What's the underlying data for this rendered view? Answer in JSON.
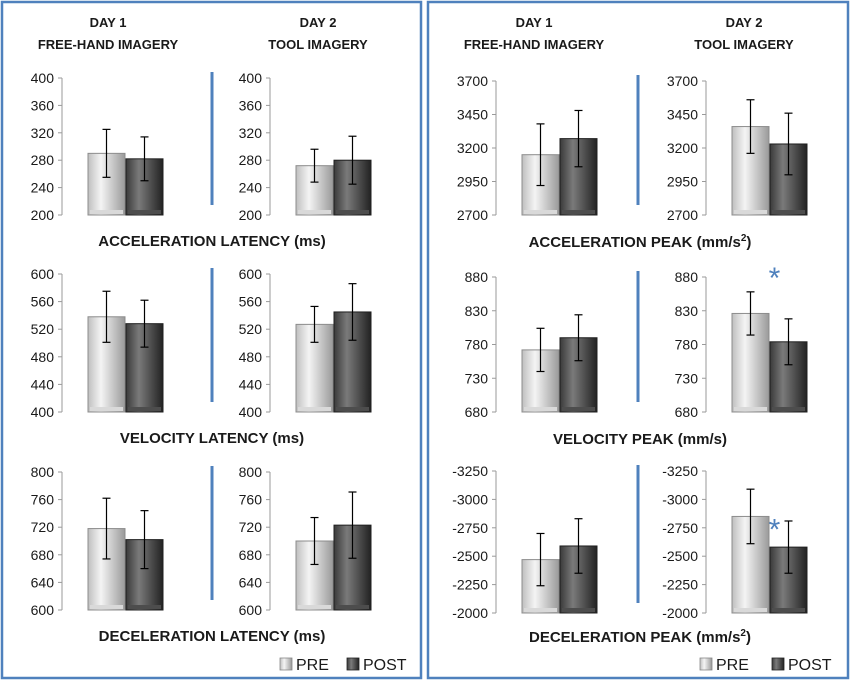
{
  "header": {
    "left": [
      {
        "day": "DAY 1",
        "type": "FREE-HAND IMAGERY"
      },
      {
        "day": "DAY 2",
        "type": "TOOL IMAGERY"
      }
    ],
    "right": [
      {
        "day": "DAY 1",
        "type": "FREE-HAND IMAGERY"
      },
      {
        "day": "DAY 2",
        "type": "TOOL IMAGERY"
      }
    ]
  },
  "legend": {
    "pre": "PRE",
    "post": "POST"
  },
  "colors": {
    "panel_border": "#4f81bd",
    "divider": "#4f81bd",
    "pre_light": "#f2f2f2",
    "pre_dark": "#a6a6a6",
    "post_light": "#808080",
    "post_dark": "#262626",
    "asterisk": "#4f81bd"
  },
  "chart_data": [
    {
      "type": "bar",
      "title": "ACCELERATION LATENCY (ms)",
      "ylim": [
        200,
        400
      ],
      "yticks": [
        "400",
        "360",
        "320",
        "280",
        "240",
        "200"
      ],
      "series_names": [
        "PRE",
        "POST"
      ],
      "groups": [
        {
          "day": "DAY 1",
          "values": [
            290,
            282
          ],
          "errors": [
            35,
            32
          ],
          "significant": false
        },
        {
          "day": "DAY 2",
          "values": [
            272,
            280
          ],
          "errors": [
            24,
            35
          ],
          "significant": false
        }
      ]
    },
    {
      "type": "bar",
      "title": "VELOCITY LATENCY (ms)",
      "ylim": [
        400,
        600
      ],
      "yticks": [
        "600",
        "560",
        "520",
        "480",
        "440",
        "400"
      ],
      "series_names": [
        "PRE",
        "POST"
      ],
      "groups": [
        {
          "day": "DAY 1",
          "values": [
            538,
            528
          ],
          "errors": [
            37,
            34
          ],
          "significant": false
        },
        {
          "day": "DAY 2",
          "values": [
            527,
            545
          ],
          "errors": [
            26,
            41
          ],
          "significant": false
        }
      ]
    },
    {
      "type": "bar",
      "title": "DECELERATION LATENCY (ms)",
      "ylim": [
        600,
        800
      ],
      "yticks": [
        "800",
        "760",
        "720",
        "680",
        "640",
        "600"
      ],
      "series_names": [
        "PRE",
        "POST"
      ],
      "groups": [
        {
          "day": "DAY 1",
          "values": [
            718,
            702
          ],
          "errors": [
            44,
            42
          ],
          "significant": false
        },
        {
          "day": "DAY 2",
          "values": [
            700,
            723
          ],
          "errors": [
            34,
            48
          ],
          "significant": false
        }
      ]
    },
    {
      "type": "bar",
      "title": "ACCELERATION PEAK (mm/s",
      "title_sup": "2",
      "title_end": ")",
      "ylim": [
        2700,
        3700
      ],
      "yticks": [
        "3700",
        "3450",
        "3200",
        "2950",
        "2700"
      ],
      "series_names": [
        "PRE",
        "POST"
      ],
      "groups": [
        {
          "day": "DAY 1",
          "values": [
            3150,
            3270
          ],
          "errors": [
            230,
            210
          ],
          "significant": false
        },
        {
          "day": "DAY 2",
          "values": [
            3360,
            3230
          ],
          "errors": [
            200,
            230
          ],
          "significant": false
        }
      ]
    },
    {
      "type": "bar",
      "title": "VELOCITY PEAK (mm/s)",
      "ylim": [
        680,
        880
      ],
      "yticks": [
        "880",
        "830",
        "780",
        "730",
        "680"
      ],
      "series_names": [
        "PRE",
        "POST"
      ],
      "groups": [
        {
          "day": "DAY 1",
          "values": [
            772,
            790
          ],
          "errors": [
            32,
            34
          ],
          "significant": false
        },
        {
          "day": "DAY 2",
          "values": [
            826,
            784
          ],
          "errors": [
            32,
            34
          ],
          "significant": true,
          "marker": "*"
        }
      ]
    },
    {
      "type": "bar",
      "title": "DECELERATION PEAK (mm/s",
      "title_sup": "2",
      "title_end": ")",
      "ylim": [
        -2000,
        -3250
      ],
      "yticks": [
        "-3250",
        "-3000",
        "-2750",
        "-2500",
        "-2250",
        "-2000"
      ],
      "series_names": [
        "PRE",
        "POST"
      ],
      "groups": [
        {
          "day": "DAY 1",
          "values": [
            -2470,
            -2590
          ],
          "errors": [
            230,
            240
          ],
          "significant": false
        },
        {
          "day": "DAY 2",
          "values": [
            -2850,
            -2580
          ],
          "errors": [
            240,
            230
          ],
          "significant": true,
          "marker": "*"
        }
      ]
    }
  ]
}
